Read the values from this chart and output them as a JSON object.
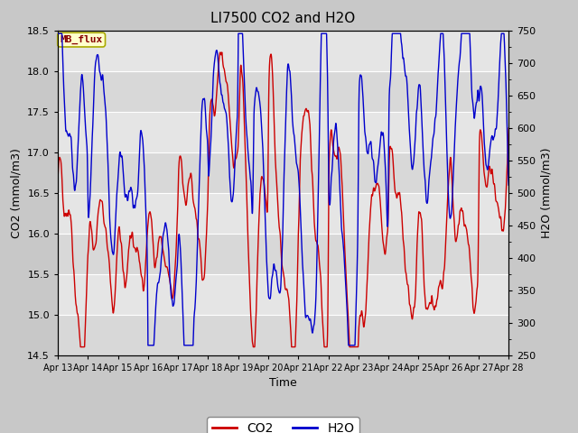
{
  "title": "LI7500 CO2 and H2O",
  "xlabel": "Time",
  "ylabel_left": "CO2 (mmol/m3)",
  "ylabel_right": "H2O (mmol/m3)",
  "co2_ylim": [
    14.5,
    18.5
  ],
  "h2o_ylim": [
    250,
    750
  ],
  "co2_color": "#cc0000",
  "h2o_color": "#0000cc",
  "fig_bg_color": "#c8c8c8",
  "plot_bg_color": "#d8d8d8",
  "legend_label_co2": "CO2",
  "legend_label_h2o": "H2O",
  "watermark_text": "MB_flux",
  "watermark_bg": "#ffffcc",
  "watermark_fg": "#880000",
  "xtick_labels": [
    "Apr 13",
    "Apr 14",
    "Apr 15",
    "Apr 16",
    "Apr 17",
    "Apr 18",
    "Apr 19",
    "Apr 20",
    "Apr 21",
    "Apr 22",
    "Apr 23",
    "Apr 24",
    "Apr 25",
    "Apr 26",
    "Apr 27",
    "Apr 28"
  ],
  "co2_yticks": [
    14.5,
    15.0,
    15.5,
    16.0,
    16.5,
    17.0,
    17.5,
    18.0,
    18.5
  ],
  "h2o_yticks": [
    250,
    300,
    350,
    400,
    450,
    500,
    550,
    600,
    650,
    700,
    750
  ],
  "line_width": 1.0
}
